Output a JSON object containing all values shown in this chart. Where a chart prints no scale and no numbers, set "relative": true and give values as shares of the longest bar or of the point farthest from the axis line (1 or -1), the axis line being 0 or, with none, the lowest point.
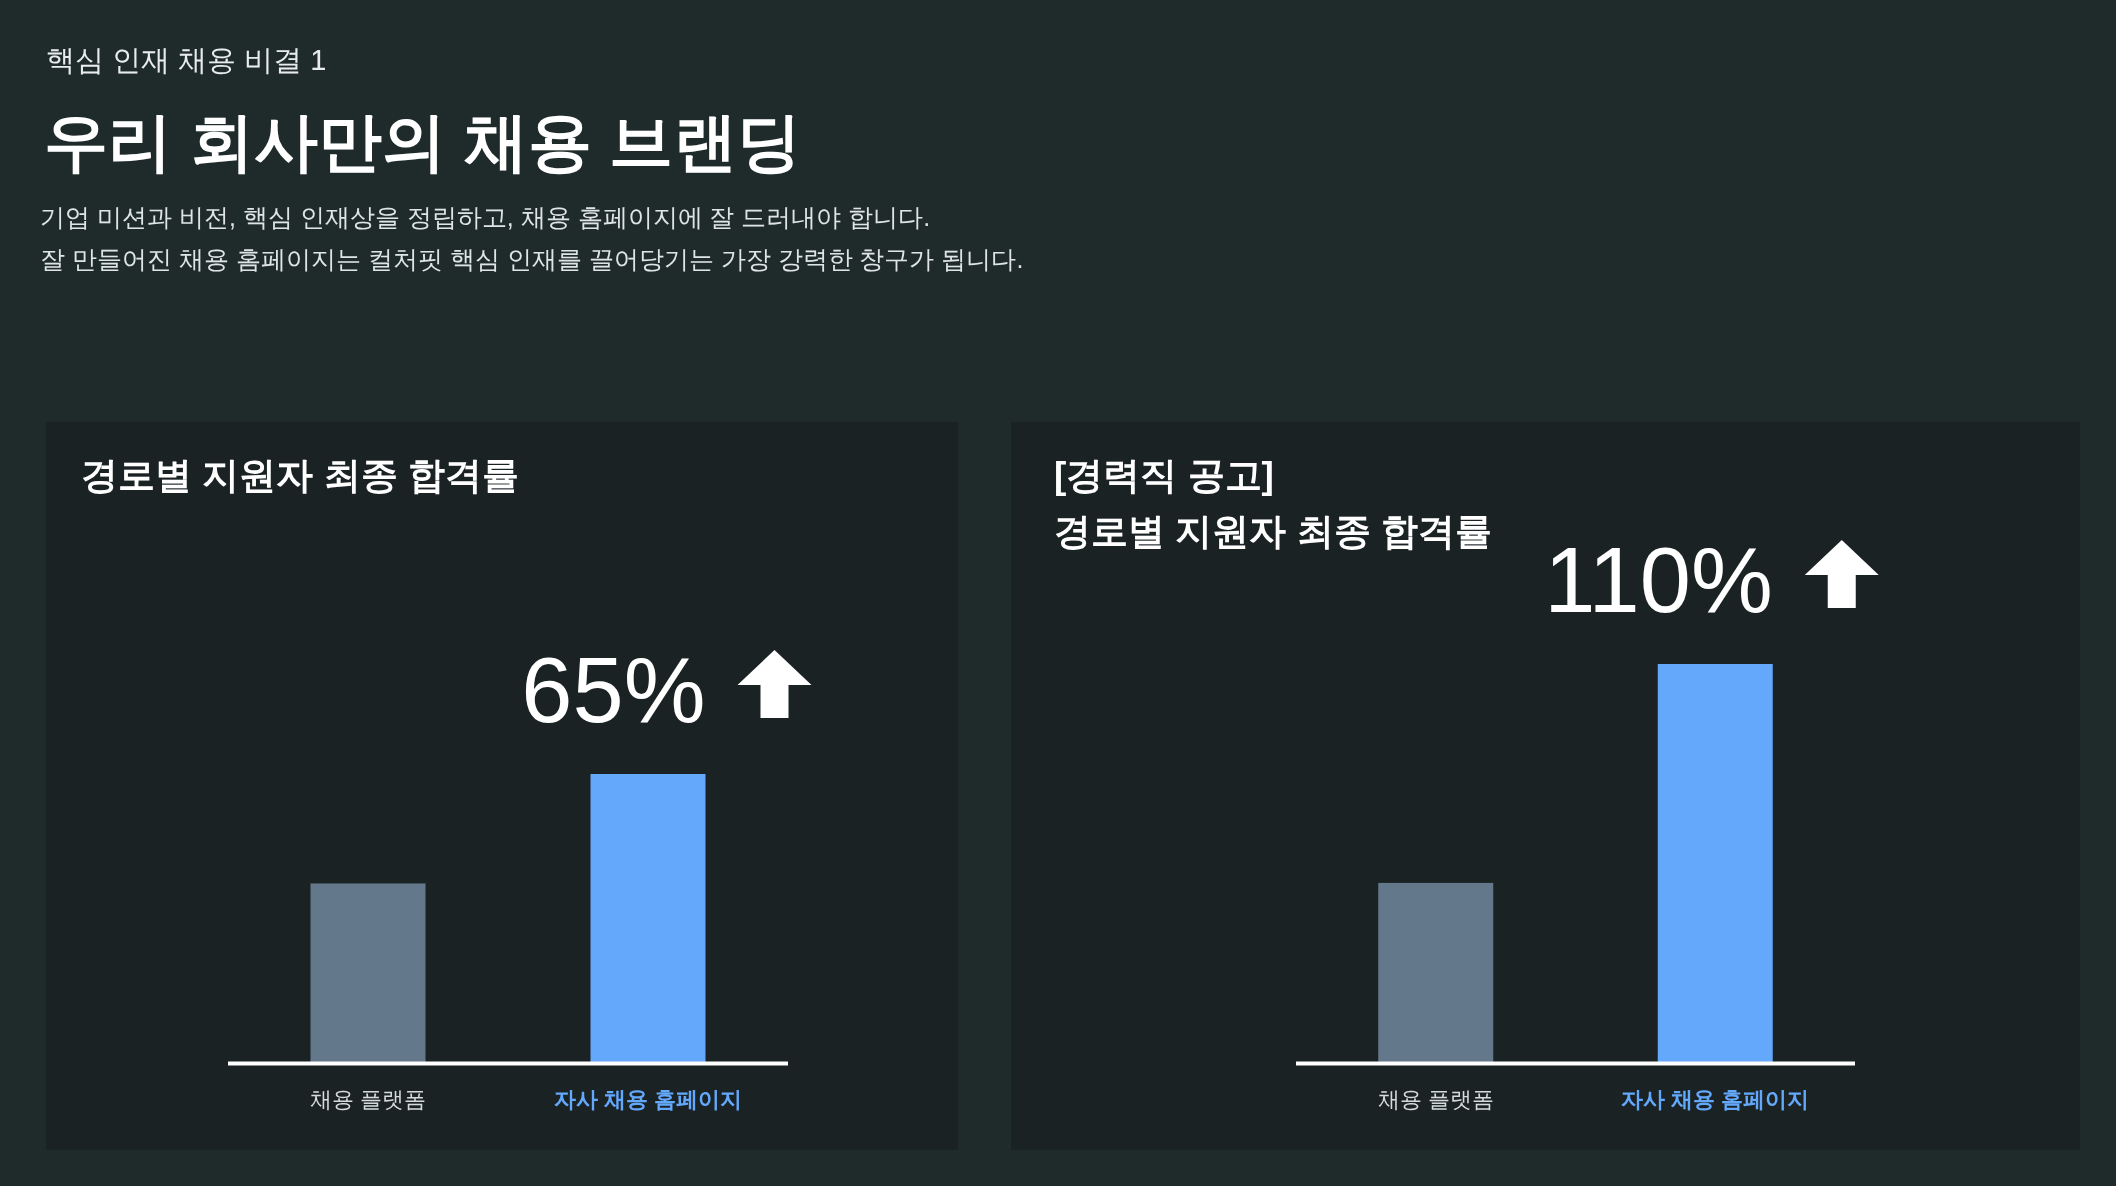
{
  "chart_data": [
    {
      "type": "other",
      "title": "우리 회사만의 채용 브랜딩",
      "subtitle": "기업 미션과 비전, 핵심 인재상을 정립하고, 채용 홈페이지에 잘 드러내야 합니다.\n잘 만들어진 채용 홈페이지는 컬처핏 핵심 인재를 끌어당기는 가장 강력한 창구가 됩니다.",
      "annotations": [
        "핵심 인재 채용 비결 1"
      ]
    },
    {
      "type": "bar",
      "title": "경로별 지원자 최종 합격률",
      "categories": [
        "채용 플랫폼",
        "자사 채용 홈페이지"
      ],
      "values": [
        0.62,
        1
      ],
      "colors": [
        "#64788c",
        "#63a8fb"
      ],
      "relative": true,
      "annotations": [
        {
          "text": "65%",
          "x": "자사 채용 홈페이지",
          "y": 1
        }
      ]
    },
    {
      "type": "bar",
      "title": "[경력직 공고]\n경로별 지원자 최종 합격률",
      "categories": [
        "채용 플랫폼",
        "자사 채용 홈페이지"
      ],
      "values": [
        0.45,
        1
      ],
      "colors": [
        "#64788c",
        "#63a8fb"
      ],
      "relative": true,
      "annotations": [
        {
          "text": "110%",
          "x": "자사 채용 홈페이지",
          "y": 1
        }
      ]
    }
  ]
}
